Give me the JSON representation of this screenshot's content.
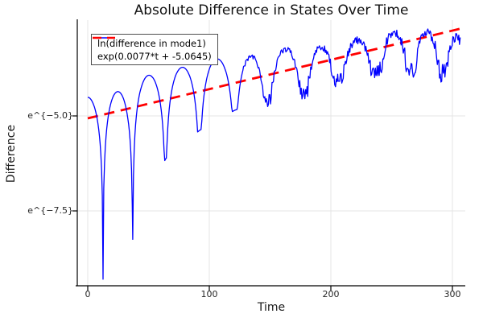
{
  "chart_data": {
    "type": "line",
    "title": "Absolute Difference in States Over Time",
    "xlabel": "Time",
    "ylabel": "Difference",
    "x_ticks": [
      0,
      100,
      200,
      300
    ],
    "y_ticks": [
      {
        "label": "e^{−5.0}",
        "ln_value": -5.0
      },
      {
        "label": "e^{−7.5}",
        "ln_value": -7.5
      }
    ],
    "xlim": [
      -9,
      311
    ],
    "ylim_ln": [
      -9.47,
      -2.54
    ],
    "grid": true,
    "legend_position": "top-left-inside",
    "colors": {
      "blue_series": "#0000ff",
      "red_series": "#ff0000",
      "grid": "#e4e4e4",
      "axis": "#000000"
    },
    "series": [
      {
        "name": "ln(difference in mode1)",
        "color": "#0000ff",
        "style": "solid",
        "description": "log of absolute difference; |sin|-like arches riding an exponential growth trend, becoming noisy after t≈130",
        "t_range": [
          0,
          307
        ],
        "noise_start_t": 128,
        "dips_t_ln": [
          [
            12.6,
            -9.3
          ],
          [
            37,
            -8.25
          ],
          [
            64,
            -6.13
          ],
          [
            92,
            -5.38
          ],
          [
            121,
            -4.85
          ],
          [
            148,
            -4.57
          ],
          [
            178,
            -4.47
          ],
          [
            206,
            -4.08
          ],
          [
            238,
            -3.78
          ],
          [
            266,
            -3.89
          ],
          [
            292,
            -3.87
          ]
        ],
        "peaks_t_ln": [
          [
            0,
            -4.51
          ],
          [
            24.8,
            -4.36
          ],
          [
            50,
            -3.93
          ],
          [
            78,
            -3.72
          ],
          [
            106,
            -3.5
          ],
          [
            134,
            -3.44
          ],
          [
            163,
            -3.25
          ],
          [
            192,
            -3.18
          ],
          [
            222,
            -3.01
          ],
          [
            252,
            -2.82
          ],
          [
            279,
            -2.8
          ],
          [
            303,
            -2.93
          ]
        ]
      },
      {
        "name": "exp(0.0077*t + -5.0645)",
        "color": "#ff0000",
        "style": "dashed",
        "model": "ln(y) = slope*t + intercept",
        "slope": 0.0077,
        "intercept": -5.0645,
        "t_range": [
          0,
          307
        ]
      }
    ]
  }
}
